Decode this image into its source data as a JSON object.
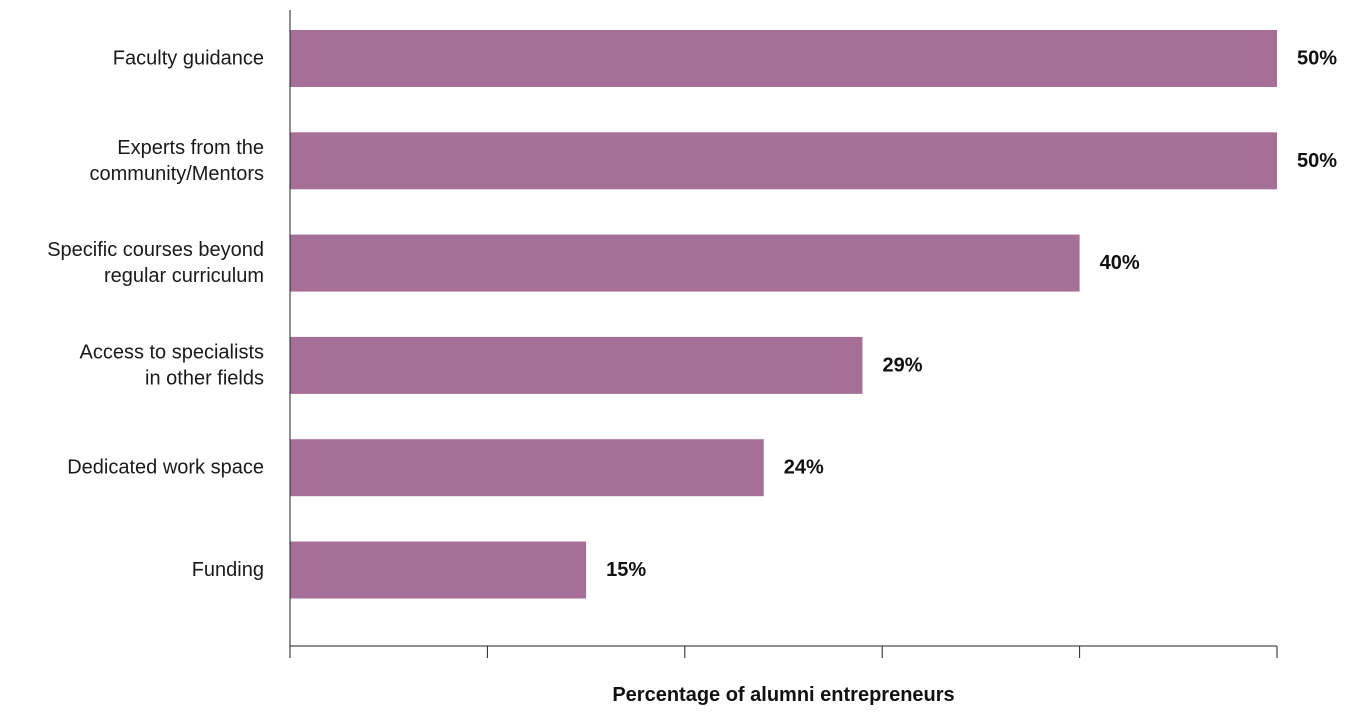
{
  "chart_data": {
    "type": "bar",
    "orientation": "horizontal",
    "categories": [
      [
        "Faculty guidance"
      ],
      [
        "Experts from the",
        "community/Mentors"
      ],
      [
        "Specific courses beyond",
        "regular curriculum"
      ],
      [
        "Access to specialists",
        "in other fields"
      ],
      [
        "Dedicated work space"
      ],
      [
        "Funding"
      ]
    ],
    "values": [
      50,
      50,
      40,
      29,
      24,
      15
    ],
    "value_labels": [
      "50%",
      "50%",
      "40%",
      "29%",
      "24%",
      "15%"
    ],
    "xlabel": "Percentage of alumni entrepreneurs",
    "xlim": [
      0,
      50
    ],
    "x_ticks": [
      0,
      10,
      20,
      30,
      40,
      50
    ],
    "x_tick_labels_shown": false,
    "grid": false,
    "bar_color": "#a66f98"
  }
}
